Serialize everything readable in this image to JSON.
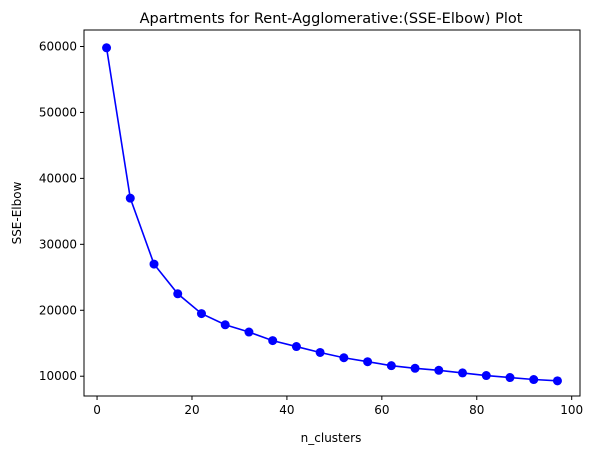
{
  "chart_data": {
    "type": "line",
    "title": "Apartments for Rent-Agglomerative:(SSE-Elbow) Plot",
    "xlabel": "n_clusters",
    "ylabel": "SSE-Elbow",
    "xlim": [
      -2.75,
      101.75
    ],
    "ylim": [
      7000,
      62500
    ],
    "xticks": [
      0,
      20,
      40,
      60,
      80,
      100
    ],
    "yticks": [
      10000,
      20000,
      30000,
      40000,
      50000,
      60000
    ],
    "grid": false,
    "series": [
      {
        "color": "#0000ff",
        "marker": "circle",
        "x": [
          2,
          7,
          12,
          17,
          22,
          27,
          32,
          37,
          42,
          47,
          52,
          57,
          62,
          67,
          72,
          77,
          82,
          87,
          92,
          97
        ],
        "y": [
          59800,
          37000,
          27000,
          22500,
          19500,
          17800,
          16700,
          15400,
          14500,
          13600,
          12800,
          12200,
          11600,
          11200,
          10900,
          10500,
          10100,
          9800,
          9500,
          9300
        ]
      }
    ]
  }
}
